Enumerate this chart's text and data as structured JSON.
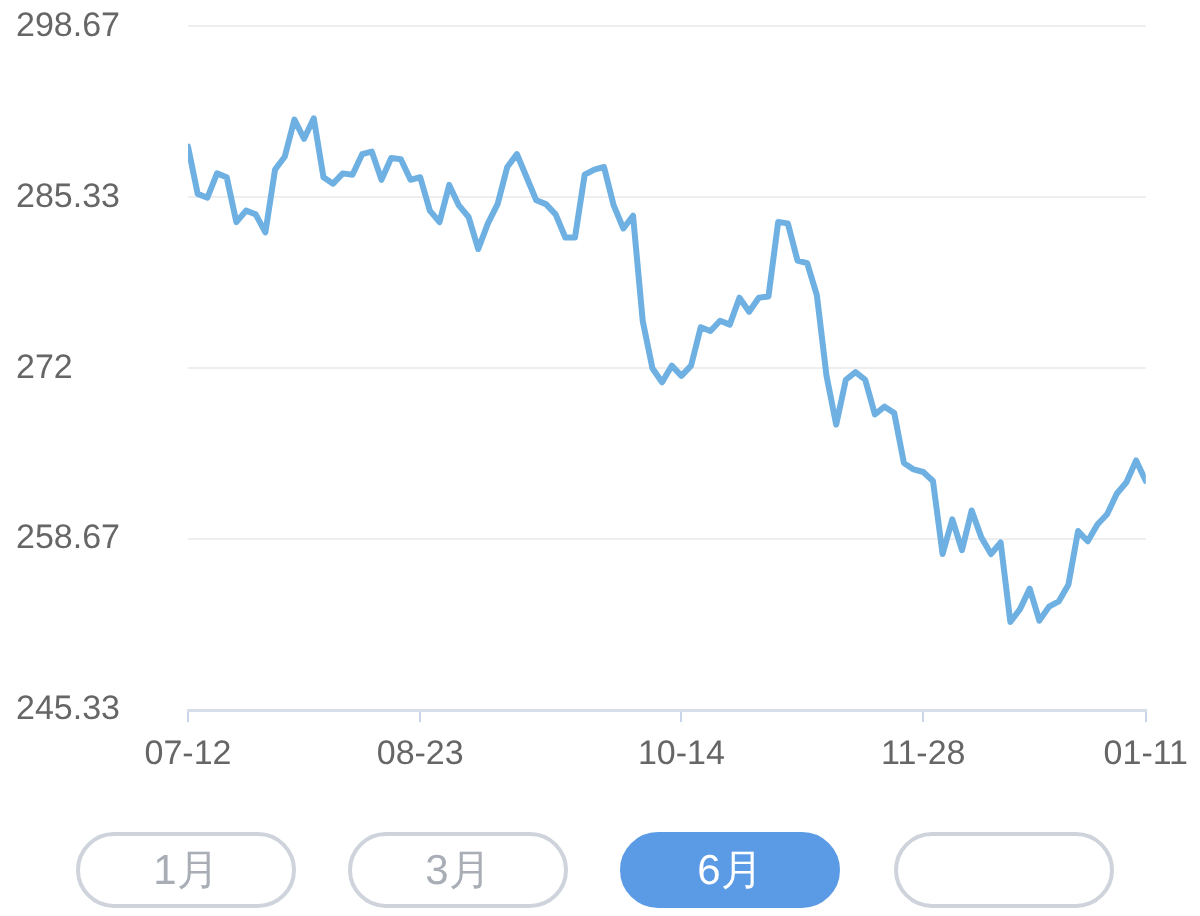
{
  "chart_data": {
    "type": "line",
    "categories": [
      "07-12",
      null,
      null,
      null,
      null,
      null,
      null,
      null,
      null,
      null,
      null,
      null,
      null,
      null,
      null,
      null,
      null,
      null,
      null,
      null,
      null,
      null,
      null,
      null,
      "08-23",
      null,
      null,
      null,
      null,
      null,
      null,
      null,
      null,
      null,
      null,
      null,
      null,
      null,
      null,
      null,
      null,
      null,
      null,
      null,
      null,
      null,
      null,
      null,
      null,
      null,
      null,
      "10-14",
      null,
      null,
      null,
      null,
      null,
      null,
      null,
      null,
      null,
      null,
      null,
      null,
      null,
      null,
      null,
      null,
      null,
      null,
      null,
      null,
      null,
      null,
      null,
      null,
      "11-28",
      null,
      null,
      null,
      null,
      null,
      null,
      null,
      null,
      null,
      null,
      null,
      null,
      null,
      null,
      null,
      null,
      null,
      null,
      null,
      null,
      null,
      null,
      "01-11"
    ],
    "series": [
      {
        "color": "#6eb0e2",
        "values": [
          289.3,
          285.6,
          285.3,
          287.2,
          286.9,
          283.4,
          284.3,
          284.0,
          282.6,
          287.5,
          288.5,
          291.4,
          289.9,
          291.5,
          286.9,
          286.4,
          287.2,
          287.1,
          288.7,
          288.9,
          286.7,
          288.4,
          288.3,
          286.7,
          286.9,
          284.3,
          283.4,
          286.3,
          284.7,
          283.8,
          281.3,
          283.3,
          284.8,
          287.7,
          288.7,
          286.9,
          285.1,
          284.8,
          284.0,
          282.2,
          282.2,
          287.1,
          287.5,
          287.7,
          284.7,
          282.9,
          283.9,
          275.7,
          272.0,
          270.9,
          272.2,
          271.4,
          272.2,
          275.2,
          274.9,
          275.7,
          275.4,
          277.5,
          276.4,
          277.5,
          277.6,
          283.4,
          283.3,
          280.4,
          280.2,
          277.7,
          271.4,
          267.6,
          271.1,
          271.7,
          271.1,
          268.4,
          269.0,
          268.5,
          264.6,
          264.1,
          263.9,
          263.2,
          257.5,
          260.2,
          257.8,
          260.9,
          258.8,
          257.5,
          258.4,
          252.2,
          253.2,
          254.8,
          252.3,
          253.4,
          253.8,
          255.1,
          259.3,
          258.5,
          259.8,
          260.6,
          262.2,
          263.1,
          264.8,
          263.2
        ]
      }
    ],
    "ylim": [
      245.33,
      298.67
    ],
    "yticks": [
      245.33,
      258.67,
      272.0,
      285.33,
      298.67
    ],
    "grid": "y",
    "legend": false,
    "marker": "none",
    "line_style": "solid",
    "annotations": [
      "1月",
      "3月",
      "6月"
    ]
  }
}
